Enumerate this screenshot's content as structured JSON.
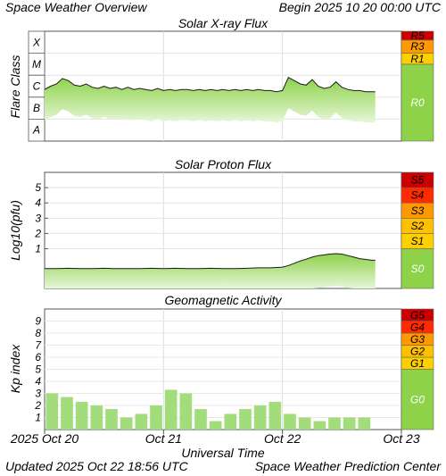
{
  "header": {
    "title": "Space Weather Overview",
    "begin": "Begin 2025 10 20 00:00 UTC"
  },
  "footer": {
    "updated": "Updated 2025 Oct 22 18:56 UTC",
    "source": "Space Weather Prediction Center"
  },
  "x_axis": {
    "title": "Universal Time",
    "ticks": [
      {
        "label": "2025 Oct 20",
        "day": 0
      },
      {
        "label": "Oct 21",
        "day": 1
      },
      {
        "label": "Oct 22",
        "day": 2
      },
      {
        "label": "Oct 23",
        "day": 3
      }
    ]
  },
  "colors": {
    "green_base": "#8ed24a",
    "green_light": "#e6f6d8",
    "scale_green": "#8ed24a",
    "scale_yellow": "#ffd000",
    "scale_orange": "#ff9900",
    "scale_red": "#ff2a00",
    "scale_darkred": "#cc0000",
    "bar_fill": "#a3dc7a"
  },
  "chart_data": [
    {
      "type": "area",
      "title": "Solar X-ray Flux",
      "ylabel": "Flare Class",
      "y_classes": [
        "A",
        "B",
        "C",
        "M",
        "X"
      ],
      "ylim": [
        0,
        5
      ],
      "x_unit": "days since 2025 Oct 20 00:00 UTC",
      "x": [
        0,
        0.05,
        0.1,
        0.15,
        0.2,
        0.25,
        0.3,
        0.35,
        0.4,
        0.45,
        0.5,
        0.55,
        0.6,
        0.65,
        0.7,
        0.75,
        0.8,
        0.85,
        0.9,
        0.95,
        1.0,
        1.05,
        1.1,
        1.15,
        1.2,
        1.25,
        1.3,
        1.35,
        1.4,
        1.45,
        1.5,
        1.55,
        1.6,
        1.65,
        1.7,
        1.75,
        1.8,
        1.85,
        1.9,
        1.95,
        2.0,
        2.05,
        2.1,
        2.15,
        2.2,
        2.25,
        2.3,
        2.35,
        2.4,
        2.45,
        2.5,
        2.55,
        2.6,
        2.65,
        2.7,
        2.75,
        2.78
      ],
      "y": [
        2.35,
        2.5,
        2.6,
        2.85,
        2.75,
        2.55,
        2.5,
        2.6,
        2.45,
        2.4,
        2.5,
        2.4,
        2.45,
        2.35,
        2.45,
        2.35,
        2.4,
        2.35,
        2.3,
        2.4,
        2.3,
        2.35,
        2.3,
        2.35,
        2.35,
        2.3,
        2.35,
        2.3,
        2.35,
        2.3,
        2.35,
        2.3,
        2.35,
        2.3,
        2.35,
        2.3,
        2.35,
        2.3,
        2.3,
        2.25,
        2.3,
        2.9,
        2.75,
        2.6,
        2.55,
        2.8,
        2.5,
        2.4,
        2.45,
        2.7,
        2.45,
        2.35,
        2.3,
        2.3,
        2.25,
        2.25,
        2.25
      ],
      "spikes": [
        {
          "x": 1.25,
          "y": 2.9
        },
        {
          "x": 2.4,
          "y": 2.75
        }
      ],
      "scale": [
        {
          "label": "R0",
          "range": [
            0,
            3.5
          ],
          "color": "#8ed24a"
        },
        {
          "label": "R1",
          "range": [
            3.5,
            4.0
          ],
          "color": "#ffd000"
        },
        {
          "label": "R3",
          "range": [
            4.0,
            4.6
          ],
          "color": "#ff9900"
        },
        {
          "label": "R5",
          "range": [
            4.6,
            5.0
          ],
          "color": "#cc0000"
        }
      ]
    },
    {
      "type": "area",
      "title": "Solar Proton Flux",
      "ylabel": "Log10(pfu)",
      "ylim": [
        -1.6,
        6
      ],
      "yticks": [
        1,
        2,
        3,
        4,
        5
      ],
      "x_unit": "days since 2025 Oct 20 00:00 UTC",
      "x": [
        0,
        0.1,
        0.2,
        0.3,
        0.4,
        0.5,
        0.6,
        0.7,
        0.8,
        0.9,
        1.0,
        1.1,
        1.2,
        1.3,
        1.4,
        1.5,
        1.6,
        1.7,
        1.8,
        1.9,
        2.0,
        2.05,
        2.1,
        2.15,
        2.2,
        2.25,
        2.3,
        2.35,
        2.4,
        2.45,
        2.5,
        2.55,
        2.6,
        2.65,
        2.7,
        2.75,
        2.78
      ],
      "y": [
        -0.3,
        -0.3,
        -0.28,
        -0.3,
        -0.3,
        -0.28,
        -0.3,
        -0.3,
        -0.3,
        -0.28,
        -0.3,
        -0.28,
        -0.3,
        -0.3,
        -0.28,
        -0.3,
        -0.3,
        -0.28,
        -0.25,
        -0.25,
        -0.2,
        -0.1,
        0.05,
        0.2,
        0.32,
        0.45,
        0.55,
        0.6,
        0.65,
        0.68,
        0.65,
        0.55,
        0.45,
        0.35,
        0.3,
        0.25,
        0.25
      ],
      "scale": [
        {
          "label": "S0",
          "range": [
            -1.6,
            1
          ],
          "color": "#8ed24a"
        },
        {
          "label": "S1",
          "range": [
            1,
            2
          ],
          "color": "#ffd000"
        },
        {
          "label": "S2",
          "range": [
            2,
            3
          ],
          "color": "#ffc000"
        },
        {
          "label": "S3",
          "range": [
            3,
            4
          ],
          "color": "#ff9900"
        },
        {
          "label": "S4",
          "range": [
            4,
            5
          ],
          "color": "#ff2a00"
        },
        {
          "label": "S5",
          "range": [
            5,
            6
          ],
          "color": "#cc0000"
        }
      ]
    },
    {
      "type": "bar",
      "title": "Geomagnetic Activity",
      "ylabel": "Kp index",
      "ylim": [
        0,
        10
      ],
      "yticks": [
        1,
        2,
        3,
        4,
        5,
        6,
        7,
        8,
        9
      ],
      "x_unit": "3-hour interval index from 2025 Oct 20 00:00 UTC",
      "values": [
        3.0,
        2.7,
        2.3,
        2.0,
        1.7,
        1.0,
        1.3,
        2.0,
        3.3,
        3.0,
        1.7,
        0.7,
        1.3,
        1.7,
        2.0,
        2.3,
        1.3,
        1.0,
        0.7,
        1.0,
        1.0,
        1.0
      ],
      "scale": [
        {
          "label": "G0",
          "range": [
            0,
            5
          ],
          "color": "#8ed24a"
        },
        {
          "label": "G1",
          "range": [
            5,
            6
          ],
          "color": "#ffd000"
        },
        {
          "label": "G2",
          "range": [
            6,
            7
          ],
          "color": "#ffc000"
        },
        {
          "label": "G3",
          "range": [
            7,
            8
          ],
          "color": "#ff9900"
        },
        {
          "label": "G4",
          "range": [
            8,
            9
          ],
          "color": "#ff2a00"
        },
        {
          "label": "G5",
          "range": [
            9,
            10
          ],
          "color": "#cc0000"
        }
      ]
    }
  ]
}
